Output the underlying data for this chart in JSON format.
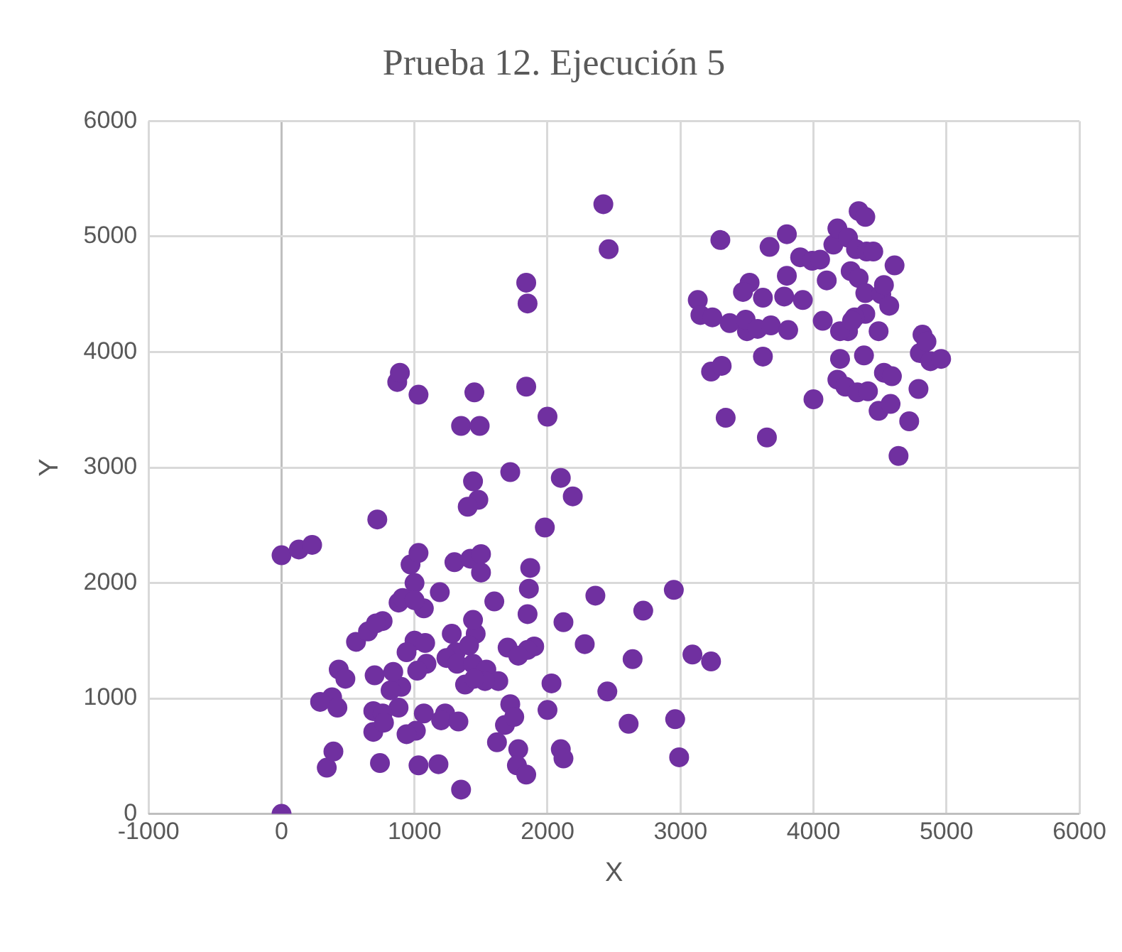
{
  "chart_data": {
    "type": "scatter",
    "title": "Prueba 12. Ejecución 5",
    "xlabel": "X",
    "ylabel": "Y",
    "xlim": [
      -1000,
      6000
    ],
    "xticks": [
      -1000,
      0,
      1000,
      2000,
      3000,
      4000,
      5000,
      6000
    ],
    "ylim": [
      0,
      6000
    ],
    "yticks": [
      0,
      1000,
      2000,
      3000,
      4000,
      5000,
      6000
    ],
    "grid": true,
    "legend": false,
    "marker": "circle",
    "series": [
      {
        "color": "#7030a0",
        "x": [
          0,
          0,
          130,
          230,
          720,
          870,
          890,
          1030,
          1350,
          1490,
          1450,
          1840,
          1850,
          2420,
          2460,
          1840,
          2000,
          1720,
          1440,
          1480,
          1400,
          2100,
          2190,
          1980,
          970,
          1030,
          1000,
          1300,
          1420,
          1500,
          1500,
          1870,
          1860,
          1850,
          1600,
          2360,
          2950,
          2720,
          2120,
          2280,
          2640,
          3090,
          3230,
          1900,
          1190,
          1070,
          880,
          910,
          1000,
          560,
          650,
          760,
          710,
          1000,
          1080,
          1280,
          1460,
          1440,
          1310,
          1240,
          1410,
          1320,
          1440,
          1540,
          1630,
          1530,
          1700,
          1850,
          1780,
          1380,
          1450,
          1090,
          1020,
          940,
          900,
          820,
          880,
          700,
          840,
          430,
          480,
          380,
          290,
          420,
          690,
          760,
          1070,
          1230,
          1200,
          1010,
          940,
          690,
          770,
          1330,
          1680,
          1720,
          1750,
          2030,
          2000,
          1620,
          1780,
          2100,
          2120,
          2450,
          2610,
          2960,
          2990,
          1770,
          1840,
          1180,
          1030,
          740,
          340,
          390,
          1350,
          3300,
          3130,
          3150,
          3240,
          3370,
          3500,
          3520,
          3470,
          3490,
          3580,
          3620,
          3680,
          3780,
          3800,
          3670,
          3800,
          3900,
          3920,
          3990,
          4050,
          4100,
          4150,
          4180,
          4260,
          4320,
          4340,
          4390,
          4400,
          4280,
          4340,
          4390,
          4390,
          4310,
          4260,
          4200,
          4070,
          4200,
          4490,
          4510,
          4570,
          4610,
          4530,
          4450,
          3810,
          3620,
          3230,
          3310,
          3340,
          3650,
          4000,
          4180,
          4240,
          4330,
          4410,
          4490,
          4530,
          4580,
          4590,
          4640,
          4720,
          4790,
          4800,
          4820,
          4850,
          4880,
          4960,
          4380,
          4290
        ],
        "values": [
          0,
          2240,
          2290,
          2330,
          2550,
          3740,
          3820,
          3630,
          3360,
          3360,
          3650,
          4600,
          4420,
          5280,
          4890,
          3700,
          3440,
          2960,
          2880,
          2720,
          2660,
          2910,
          2750,
          2480,
          2160,
          2260,
          2000,
          2180,
          2210,
          2250,
          2090,
          2130,
          1950,
          1730,
          1840,
          1890,
          1940,
          1760,
          1660,
          1470,
          1340,
          1380,
          1320,
          1450,
          1920,
          1780,
          1830,
          1870,
          1850,
          1490,
          1580,
          1670,
          1650,
          1500,
          1480,
          1560,
          1560,
          1680,
          1400,
          1350,
          1460,
          1300,
          1300,
          1250,
          1150,
          1150,
          1440,
          1420,
          1370,
          1120,
          1170,
          1300,
          1240,
          1400,
          1100,
          1070,
          920,
          1200,
          1230,
          1250,
          1170,
          1010,
          970,
          920,
          890,
          870,
          870,
          870,
          810,
          720,
          690,
          710,
          790,
          800,
          770,
          950,
          840,
          1130,
          900,
          620,
          560,
          560,
          480,
          1060,
          780,
          820,
          490,
          420,
          340,
          430,
          420,
          440,
          400,
          540,
          210,
          4970,
          4450,
          4320,
          4300,
          4250,
          4180,
          4600,
          4520,
          4280,
          4200,
          4470,
          4230,
          4480,
          4660,
          4910,
          5020,
          4820,
          4450,
          4790,
          4800,
          4620,
          4930,
          5070,
          4990,
          4890,
          5220,
          5170,
          4870,
          4700,
          4640,
          4510,
          4330,
          4300,
          4180,
          4180,
          4270,
          3940,
          4180,
          4500,
          4400,
          4750,
          4580,
          4870,
          4190,
          3960,
          3830,
          3880,
          3430,
          3260,
          3590,
          3760,
          3700,
          3650,
          3660,
          3490,
          3820,
          3550,
          3790,
          3100,
          3400,
          3680,
          3990,
          4150,
          4090,
          3920,
          3940,
          3970,
          4270
        ]
      }
    ]
  }
}
